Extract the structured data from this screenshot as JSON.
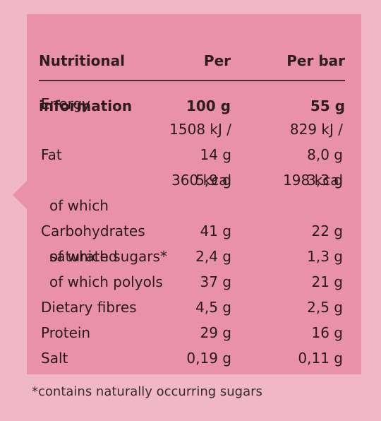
{
  "table": {
    "header": {
      "label_line1": "Nutritional",
      "label_line2": "information",
      "per100_line1": "Per",
      "per100_line2": "100 g",
      "perbar_line1": "Per bar",
      "perbar_line2": "55 g"
    },
    "rows": [
      {
        "label": "Energy",
        "per100_1": "1508 kJ /",
        "per100_2": "360 kcal",
        "perbar_1": "829 kJ /",
        "perbar_2": "198 kcal"
      },
      {
        "label": "Fat",
        "per100": "14 g",
        "perbar": "8,0 g"
      },
      {
        "label_1": "of which",
        "label_2": "saturated",
        "per100": "5,9 g",
        "perbar": "3,3 g"
      },
      {
        "label": "Carbohydrates",
        "per100": "41 g",
        "perbar": "22 g"
      },
      {
        "label": "of which sugars*",
        "per100": "2,4 g",
        "perbar": "1,3 g"
      },
      {
        "label": "of which polyols",
        "per100": "37 g",
        "perbar": "21 g"
      },
      {
        "label": "Dietary fibres",
        "per100": "4,5 g",
        "perbar": "2,5 g"
      },
      {
        "label": "Protein",
        "per100": "29 g",
        "perbar": "16 g"
      },
      {
        "label": "Salt",
        "per100": "0,19 g",
        "perbar": "0,11 g"
      }
    ]
  },
  "footnote": "*contains naturally occurring sugars",
  "colors": {
    "page_background": "#f0b8c6",
    "panel_background": "#e891a9",
    "text": "#2b1a1c",
    "rule": "#4a2b2e"
  }
}
